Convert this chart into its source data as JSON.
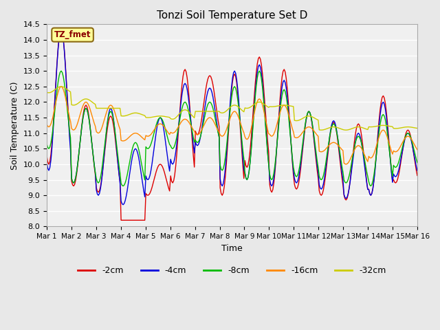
{
  "title": "Tonzi Soil Temperature Set D",
  "xlabel": "Time",
  "ylabel": "Soil Temperature (C)",
  "ylim": [
    8.0,
    14.5
  ],
  "legend_label": "TZ_fmet",
  "series_labels": [
    "-2cm",
    "-4cm",
    "-8cm",
    "-16cm",
    "-32cm"
  ],
  "series_colors": [
    "#dd0000",
    "#0000dd",
    "#00bb00",
    "#ff8800",
    "#cccc00"
  ],
  "x_tick_labels": [
    "Mar 1",
    "Mar 2",
    "Mar 3",
    "Mar 4",
    "Mar 5",
    "Mar 6",
    "Mar 7",
    "Mar 8",
    "Mar 9",
    "Mar 10",
    "Mar 11",
    "Mar 12",
    "Mar 13",
    "Mar 14",
    "Mar 15",
    "Mar 16"
  ],
  "yticks": [
    8.0,
    8.5,
    9.0,
    9.5,
    10.0,
    10.5,
    11.0,
    11.5,
    12.0,
    12.5,
    13.0,
    13.5,
    14.0,
    14.5
  ],
  "num_days": 15,
  "num_points_per_day": 24,
  "day_peaks_2cm": [
    14.35,
    11.9,
    11.55,
    8.2,
    10.0,
    13.05,
    12.85,
    12.9,
    13.45,
    13.05,
    11.7,
    11.35,
    11.3,
    12.2,
    11.1
  ],
  "day_troughs_2cm": [
    10.0,
    9.3,
    9.1,
    8.2,
    9.0,
    9.4,
    10.95,
    9.0,
    9.9,
    9.1,
    9.2,
    9.0,
    8.85,
    9.0,
    9.4
  ],
  "day_peaks_4cm": [
    14.35,
    11.8,
    11.8,
    10.5,
    11.5,
    12.6,
    12.45,
    13.0,
    13.2,
    12.7,
    11.7,
    11.4,
    11.0,
    12.0,
    11.0
  ],
  "day_troughs_4cm": [
    9.8,
    9.4,
    9.0,
    8.7,
    9.5,
    10.0,
    10.6,
    9.3,
    9.5,
    9.3,
    9.4,
    9.2,
    8.9,
    9.0,
    9.6
  ],
  "day_peaks_8cm": [
    13.0,
    11.8,
    11.7,
    10.7,
    11.5,
    12.0,
    12.0,
    12.5,
    13.0,
    12.4,
    11.7,
    11.3,
    10.9,
    11.6,
    11.0
  ],
  "day_troughs_8cm": [
    10.5,
    9.4,
    9.4,
    9.3,
    10.5,
    10.5,
    10.7,
    9.8,
    9.5,
    9.5,
    9.6,
    9.5,
    9.4,
    9.3,
    9.9
  ],
  "day_peaks_16cm": [
    12.5,
    12.0,
    11.9,
    11.0,
    11.3,
    11.45,
    11.5,
    11.7,
    12.1,
    11.9,
    11.2,
    10.7,
    10.6,
    11.1,
    10.9
  ],
  "day_troughs_16cm": [
    11.2,
    11.1,
    11.0,
    10.75,
    10.9,
    11.0,
    10.95,
    10.9,
    10.8,
    10.9,
    10.85,
    10.4,
    10.0,
    10.2,
    10.4
  ],
  "day_peaks_32cm": [
    12.5,
    12.1,
    11.8,
    11.65,
    11.55,
    11.75,
    11.7,
    11.9,
    12.0,
    11.9,
    11.55,
    11.2,
    11.2,
    11.25,
    11.2
  ],
  "day_troughs_32cm": [
    12.3,
    11.9,
    11.8,
    11.55,
    11.5,
    11.45,
    11.7,
    11.65,
    11.8,
    11.85,
    11.4,
    11.1,
    11.1,
    11.2,
    11.15
  ]
}
